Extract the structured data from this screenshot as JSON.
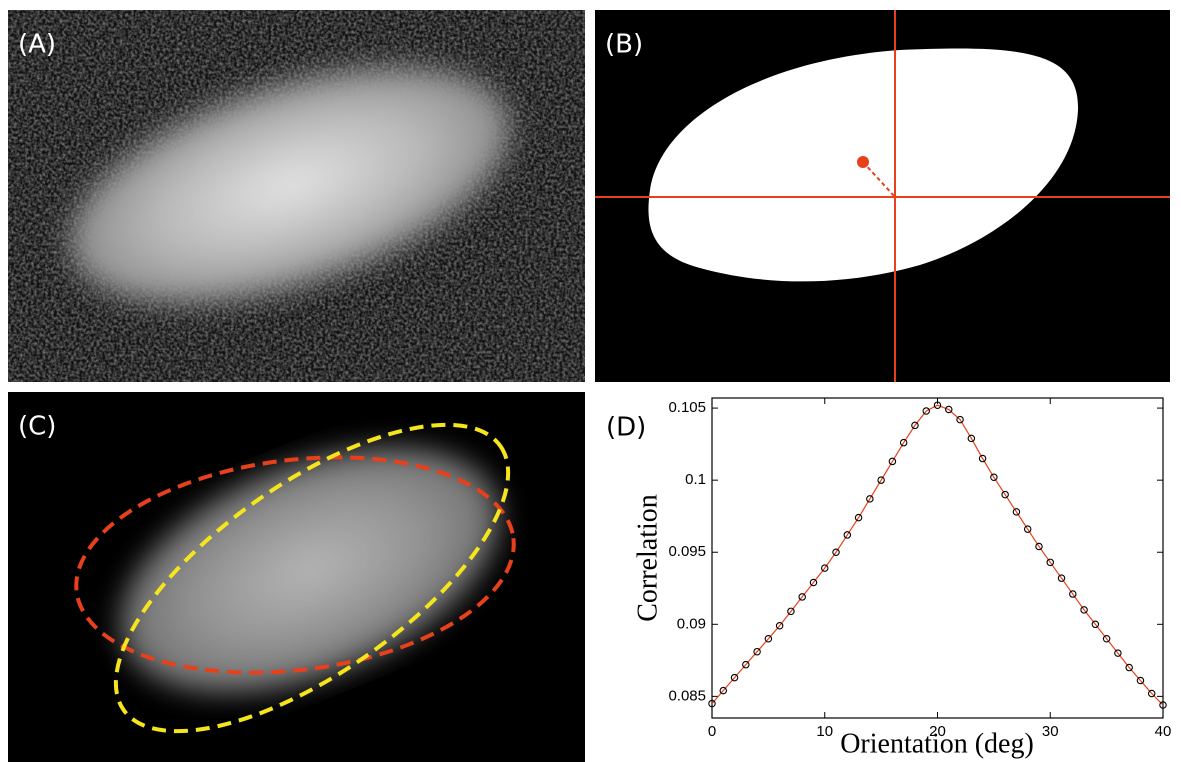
{
  "panels": [
    {
      "label": "(A)"
    },
    {
      "label": "(B)"
    },
    {
      "label": "(C)"
    }
  ],
  "chart_data": {
    "type": "line",
    "panel_label": "(D)",
    "x_label": "Orientation (deg)",
    "y_label": "Correlation",
    "x": [
      0,
      1,
      2,
      3,
      4,
      5,
      6,
      7,
      8,
      9,
      10,
      11,
      12,
      13,
      14,
      15,
      16,
      17,
      18,
      19,
      20,
      21,
      22,
      23,
      24,
      25,
      26,
      27,
      28,
      29,
      30,
      31,
      32,
      33,
      34,
      35,
      36,
      37,
      38,
      39,
      40
    ],
    "series": [
      {
        "color": "#e8401c",
        "marker_color": "#000000",
        "values": [
          0.0845,
          0.0854,
          0.0863,
          0.0872,
          0.0881,
          0.089,
          0.0899,
          0.0909,
          0.0919,
          0.0929,
          0.0939,
          0.095,
          0.0962,
          0.0974,
          0.0987,
          0.1,
          0.1013,
          0.1026,
          0.1038,
          0.1048,
          0.1052,
          0.1049,
          0.1042,
          0.1029,
          0.1015,
          0.1002,
          0.099,
          0.0978,
          0.0966,
          0.0954,
          0.0943,
          0.0932,
          0.0921,
          0.091,
          0.09,
          0.089,
          0.088,
          0.087,
          0.0861,
          0.0852,
          0.0844
        ]
      }
    ],
    "xlim": [
      0,
      40
    ],
    "xticks": [
      0,
      10,
      20,
      30,
      40
    ],
    "ylim": [
      0.0835,
      0.1057
    ],
    "yticks": [
      0.085,
      0.09,
      0.095,
      0.1,
      0.105
    ]
  }
}
